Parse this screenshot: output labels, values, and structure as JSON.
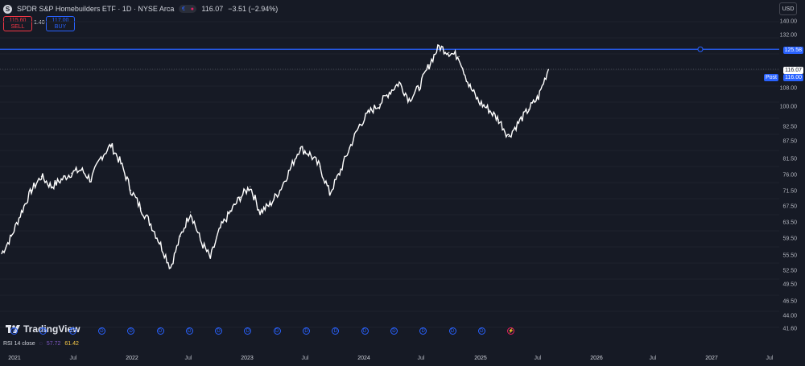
{
  "header": {
    "symbol_icon": "S",
    "title": "SPDR S&P Homebuilders ETF · 1D · NYSE Arca",
    "quote": "116.07",
    "change": "−3.51 (−2.94%)",
    "pill_icons": [
      "currency-icon",
      "eye-icon"
    ]
  },
  "trade": {
    "sell_price": "115.60",
    "sell_label": "SELL",
    "spread": "1.40",
    "buy_price": "117.00",
    "buy_label": "BUY"
  },
  "currency": "USD",
  "yaxis": {
    "ticks": [
      "140.00",
      "132.00",
      "125.58",
      "116.07",
      "116.00",
      "108.00",
      "100.00",
      "92.50",
      "87.50",
      "81.50",
      "76.00",
      "71.50",
      "67.50",
      "63.50",
      "59.50",
      "55.50",
      "52.50",
      "49.50",
      "46.50",
      "44.00",
      "41.60"
    ],
    "horizontal_line_label": "125.58",
    "last_price_label": "116.07",
    "post_label": "Post",
    "post_price": "116.00"
  },
  "xaxis": {
    "ticks": [
      "2021",
      "Jul",
      "2022",
      "Jul",
      "2023",
      "Jul",
      "2024",
      "Jul",
      "2025",
      "Jul",
      "2026",
      "Jul",
      "2027",
      "Jul"
    ]
  },
  "logo": "TradingView",
  "rsi": {
    "label": "RSI 14 close",
    "value1": "57.72",
    "value2": "61.42"
  },
  "events": [
    "D",
    "D",
    "D",
    "D",
    "D",
    "D",
    "D",
    "D",
    "D",
    "D",
    "D",
    "D",
    "D",
    "D",
    "D",
    "D",
    "D",
    "⚡"
  ],
  "colors": {
    "background": "#161a25",
    "line": "#ffffff",
    "hline": "#2962ff",
    "sell": "#f23645",
    "buy": "#2962ff"
  },
  "chart_data": {
    "type": "line",
    "x": [
      "2021-01",
      "2021-02",
      "2021-03",
      "2021-04",
      "2021-05",
      "2021-06",
      "2021-07",
      "2021-08",
      "2021-09",
      "2021-10",
      "2021-11",
      "2021-12",
      "2022-01",
      "2022-02",
      "2022-03",
      "2022-04",
      "2022-05",
      "2022-06",
      "2022-07",
      "2022-08",
      "2022-09",
      "2022-10",
      "2022-11",
      "2022-12",
      "2023-01",
      "2023-02",
      "2023-03",
      "2023-04",
      "2023-05",
      "2023-06",
      "2023-07",
      "2023-08",
      "2023-09",
      "2023-10",
      "2023-11",
      "2023-12",
      "2024-01",
      "2024-02",
      "2024-03",
      "2024-04",
      "2024-05",
      "2024-06",
      "2024-07",
      "2024-08",
      "2024-09",
      "2024-10",
      "2024-11",
      "2024-12",
      "2025-01",
      "2025-02",
      "2025-03",
      "2025-04",
      "2025-05",
      "2025-06",
      "2025-07",
      "2025-08"
    ],
    "values": [
      56,
      60,
      66,
      72,
      76,
      73,
      75,
      77,
      78,
      75,
      82,
      86,
      80,
      72,
      67,
      63,
      58,
      53,
      60,
      66,
      59,
      55,
      62,
      66,
      70,
      73,
      66,
      68,
      72,
      78,
      85,
      83,
      79,
      71,
      77,
      85,
      93,
      98,
      101,
      106,
      110,
      103,
      108,
      118,
      127,
      124,
      122,
      109,
      102,
      99,
      95,
      89,
      94,
      99,
      104,
      116
    ],
    "ylim": [
      41.6,
      140
    ],
    "scale": "log",
    "hline": 125.58
  }
}
